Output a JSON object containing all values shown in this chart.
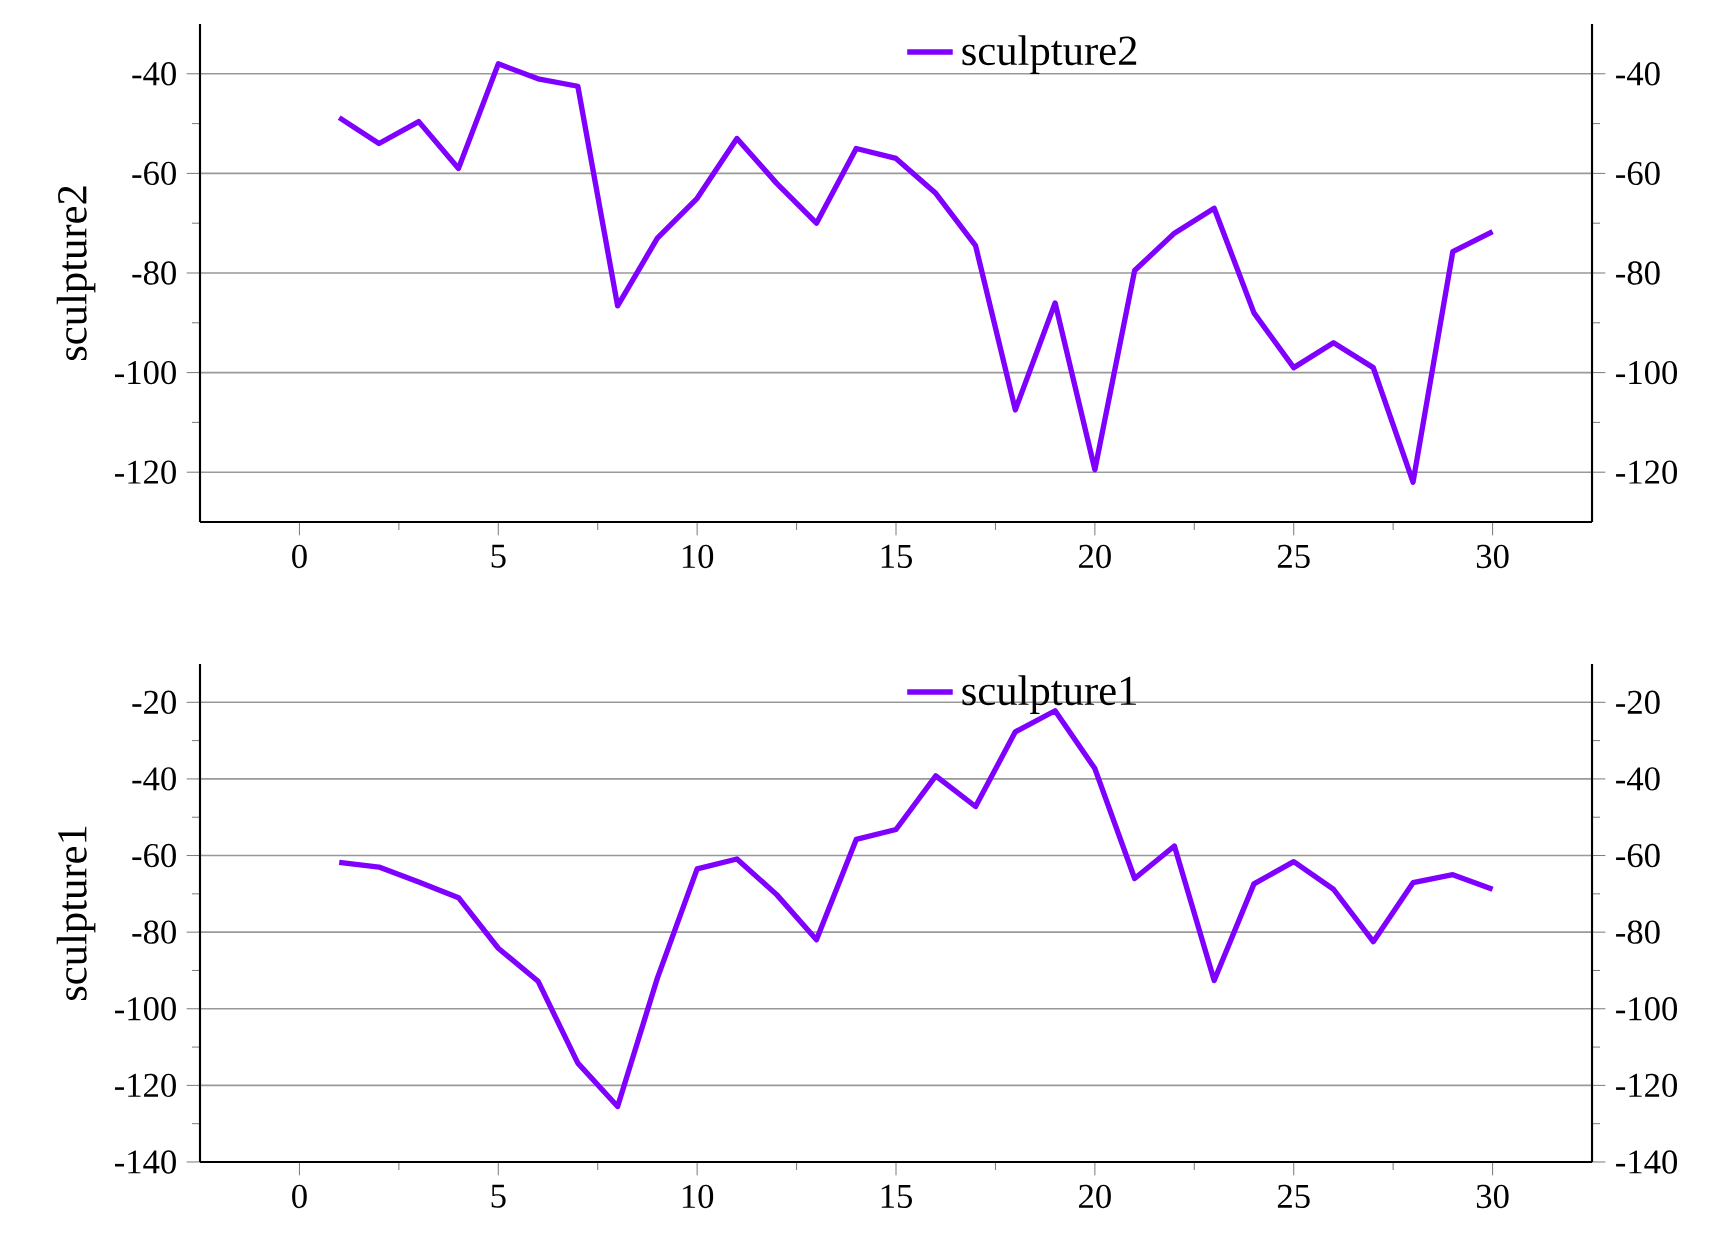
{
  "chart_data": [
    {
      "type": "line",
      "ylabel": "sculpture2",
      "x": [
        1,
        2,
        3,
        4,
        5,
        6,
        7,
        8,
        9,
        10,
        11,
        12,
        13,
        14,
        15,
        16,
        17,
        18,
        19,
        20,
        21,
        22,
        23,
        24,
        25,
        26,
        27,
        28,
        29,
        30
      ],
      "series": [
        {
          "name": "sculpture2",
          "color": "#7f00ff",
          "values": [
            -48.8,
            -54,
            -49.6,
            -59,
            -38,
            -41,
            -42.5,
            -86.6,
            -73,
            -65,
            -53,
            -62,
            -70,
            -55,
            -57,
            -64,
            -74.5,
            -107.5,
            -86,
            -119.5,
            -79.5,
            -72,
            -67,
            -88,
            -99,
            -94,
            -99,
            -122,
            -75.7,
            -71.7
          ]
        }
      ],
      "xlim": [
        -2.5,
        32.5
      ],
      "xticks": [
        0,
        5,
        10,
        15,
        20,
        25,
        30
      ],
      "ylim": [
        -130,
        -30
      ],
      "yticks": [
        -120,
        -100,
        -80,
        -60,
        -40
      ],
      "y2lim": [
        -130,
        -30
      ],
      "y2ticks": [
        -120,
        -100,
        -80,
        -60,
        -40
      ],
      "grid": "y",
      "legend": "top",
      "line_style": "solid"
    },
    {
      "type": "line",
      "ylabel": "sculpture1",
      "x": [
        1,
        2,
        3,
        4,
        5,
        6,
        7,
        8,
        9,
        10,
        11,
        12,
        13,
        14,
        15,
        16,
        17,
        18,
        19,
        20,
        21,
        22,
        23,
        24,
        25,
        26,
        27,
        28,
        29,
        30
      ],
      "series": [
        {
          "name": "sculpture1",
          "color": "#7f00ff",
          "values": [
            -61.8,
            -63,
            -66.9,
            -71,
            -84.2,
            -92.8,
            -114.2,
            -125.5,
            -92,
            -63.5,
            -60.9,
            -70.2,
            -82,
            -55.8,
            -53.2,
            -39.2,
            -47.2,
            -27.7,
            -22.2,
            -37.3,
            -66,
            -57.5,
            -92.6,
            -67.4,
            -61.6,
            -68.8,
            -82.5,
            -67.1,
            -65,
            -68.8
          ]
        }
      ],
      "xlim": [
        -2.5,
        32.5
      ],
      "xticks": [
        0,
        5,
        10,
        15,
        20,
        25,
        30
      ],
      "ylim": [
        -140,
        -10
      ],
      "yticks": [
        -140,
        -120,
        -100,
        -80,
        -60,
        -40,
        -20
      ],
      "y2lim": [
        -140,
        -10
      ],
      "y2ticks": [
        -140,
        -120,
        -100,
        -80,
        -60,
        -40,
        -20
      ],
      "grid": "y",
      "legend": "top",
      "line_style": "solid"
    }
  ]
}
